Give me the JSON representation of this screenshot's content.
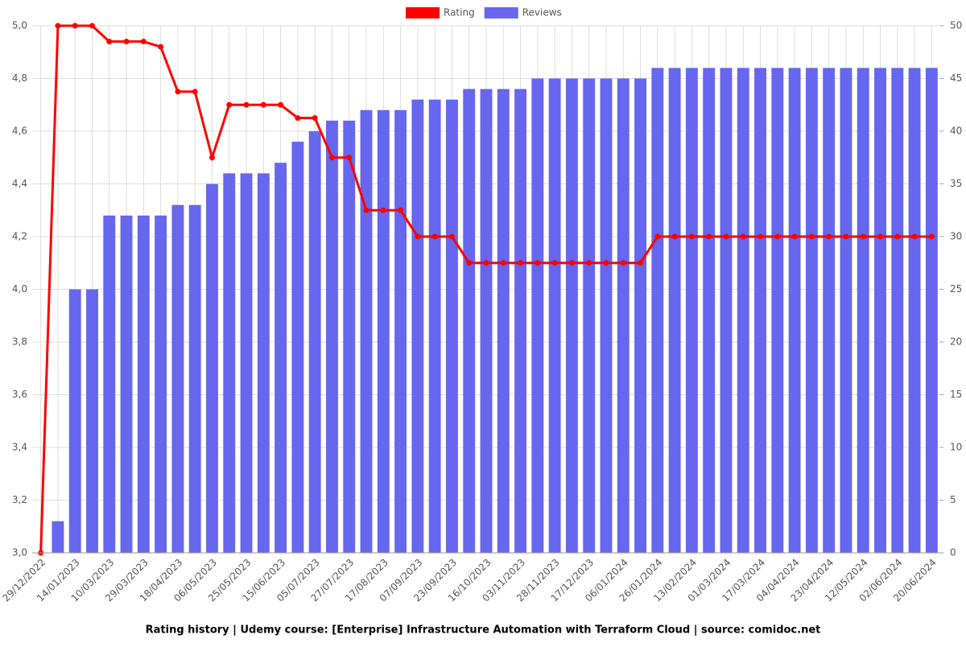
{
  "chart_data": {
    "type": "bar-line",
    "title": "Rating history | Udemy course: [Enterprise] Infrastructure Automation with Terraform Cloud | source: comidoc.net",
    "categories": [
      "29/12/2022",
      null,
      "14/01/2023",
      null,
      "10/03/2023",
      null,
      "29/03/2023",
      null,
      "18/04/2023",
      null,
      "06/05/2023",
      null,
      "25/05/2023",
      null,
      "15/06/2023",
      null,
      "05/07/2023",
      null,
      "27/07/2023",
      null,
      "17/08/2023",
      null,
      "07/09/2023",
      null,
      "23/09/2023",
      null,
      "16/10/2023",
      null,
      "03/11/2023",
      null,
      "28/11/2023",
      null,
      "17/12/2023",
      null,
      "06/01/2024",
      null,
      "26/01/2024",
      null,
      "13/02/2024",
      null,
      "01/03/2024",
      null,
      "17/03/2024",
      null,
      "04/04/2024",
      null,
      "23/04/2024",
      null,
      "12/05/2024",
      null,
      "02/06/2024",
      null,
      "20/06/2024"
    ],
    "series": [
      {
        "name": "Rating",
        "color": "#ff0000",
        "type": "line",
        "values": [
          3.0,
          5.0,
          5.0,
          5.0,
          4.94,
          4.94,
          4.94,
          4.92,
          4.75,
          4.75,
          4.5,
          4.7,
          4.7,
          4.7,
          4.7,
          4.65,
          4.65,
          4.5,
          4.5,
          4.3,
          4.3,
          4.3,
          4.2,
          4.2,
          4.2,
          4.1,
          4.1,
          4.1,
          4.1,
          4.1,
          4.1,
          4.1,
          4.1,
          4.1,
          4.1,
          4.1,
          4.2,
          4.2,
          4.2,
          4.2,
          4.2,
          4.2,
          4.2,
          4.2,
          4.2,
          4.2,
          4.2,
          4.2,
          4.2,
          4.2,
          4.2,
          4.2,
          4.2
        ]
      },
      {
        "name": "Reviews",
        "color": "#6666ee",
        "type": "bar",
        "axis": "y2",
        "values": [
          0,
          3,
          25,
          25,
          32,
          32,
          32,
          32,
          33,
          33,
          35,
          36,
          36,
          36,
          37,
          39,
          40,
          41,
          41,
          42,
          42,
          42,
          43,
          43,
          43,
          44,
          44,
          44,
          44,
          45,
          45,
          45,
          45,
          45,
          45,
          45,
          46,
          46,
          46,
          46,
          46,
          46,
          46,
          46,
          46,
          46,
          46,
          46,
          46,
          46,
          46,
          46,
          46
        ]
      }
    ],
    "ylim": [
      3.0,
      5.0
    ],
    "yticks": [
      {
        "value": 3.0,
        "label": "3,0"
      },
      {
        "value": 3.2,
        "label": "3,2"
      },
      {
        "value": 3.4,
        "label": "3,4"
      },
      {
        "value": 3.6,
        "label": "3,6"
      },
      {
        "value": 3.8,
        "label": "3,8"
      },
      {
        "value": 4.0,
        "label": "4,0"
      },
      {
        "value": 4.2,
        "label": "4,2"
      },
      {
        "value": 4.4,
        "label": "4,4"
      },
      {
        "value": 4.6,
        "label": "4,6"
      },
      {
        "value": 4.8,
        "label": "4,8"
      },
      {
        "value": 5.0,
        "label": "5,0"
      }
    ],
    "y2lim": [
      0,
      50
    ],
    "y2ticks": [
      0,
      5,
      10,
      15,
      20,
      25,
      30,
      35,
      40,
      45,
      50
    ],
    "grid": true
  }
}
